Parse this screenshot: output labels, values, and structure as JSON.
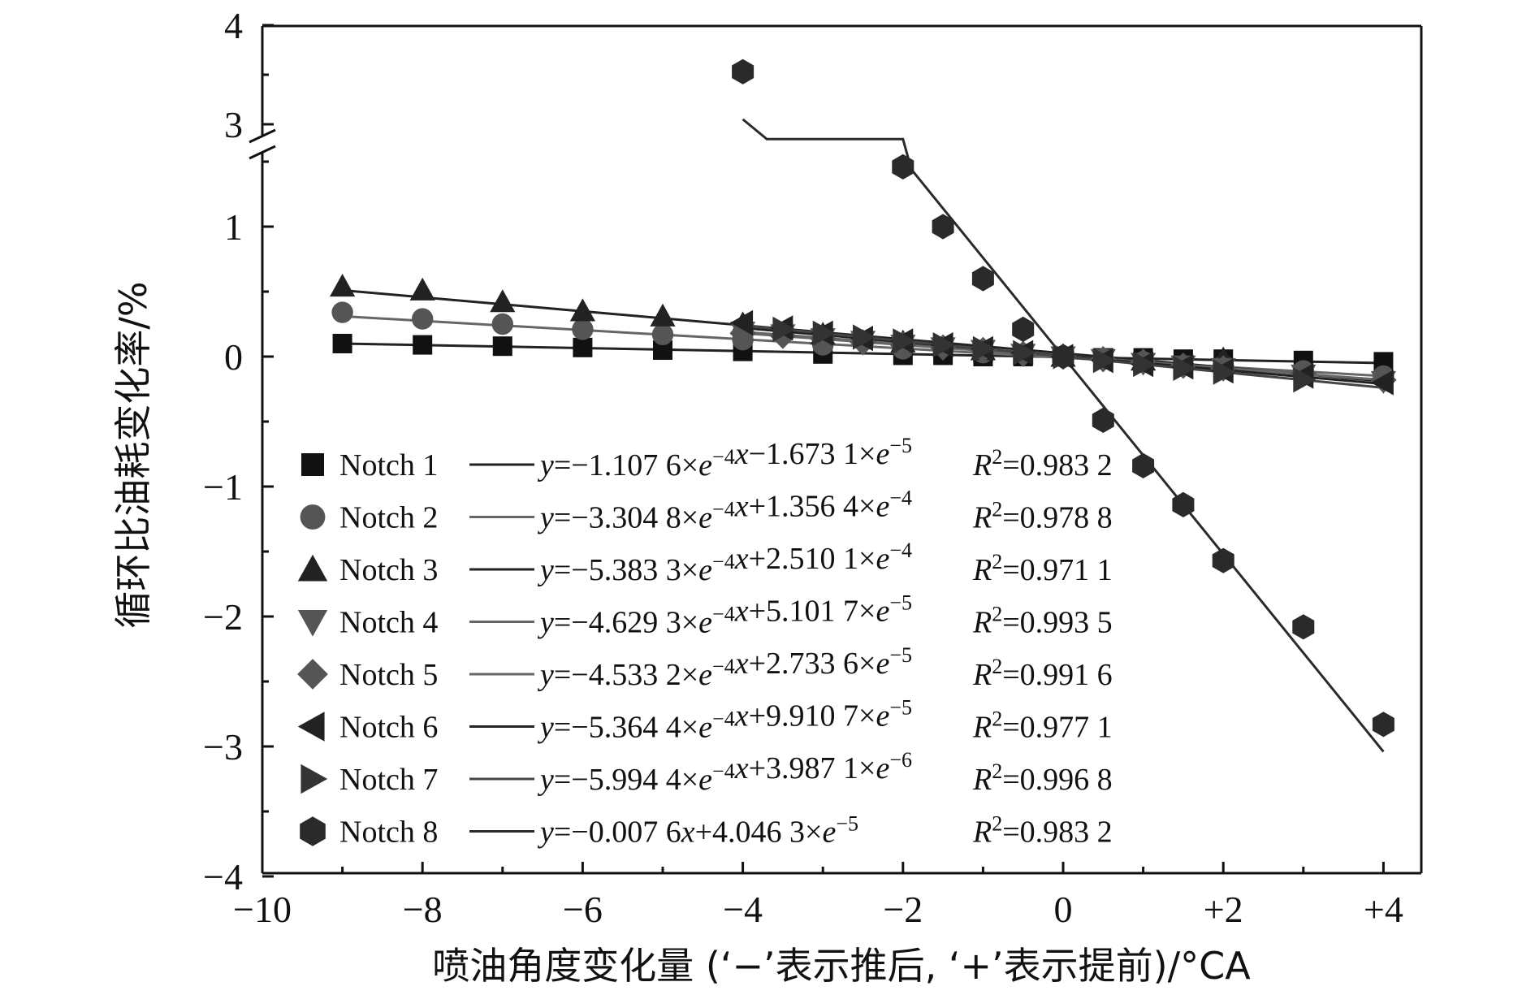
{
  "chart_data": {
    "type": "scatter",
    "xlabel": "喷油角度变化量 (‘−’表示推后, ‘+’表示提前)/°CA",
    "ylabel": "循环比油耗变化率/%",
    "xlim": [
      -10,
      4.5
    ],
    "ylim": [
      -4,
      4
    ],
    "y_axis_break": {
      "lower_top": 1.7,
      "upper_bottom": 2.8
    },
    "x_ticks": [
      {
        "value": -10,
        "label": "−10"
      },
      {
        "value": -8,
        "label": "−8"
      },
      {
        "value": -6,
        "label": "−6"
      },
      {
        "value": -4,
        "label": "−4"
      },
      {
        "value": -2,
        "label": "−2"
      },
      {
        "value": 0,
        "label": "0"
      },
      {
        "value": 2,
        "label": "+2"
      },
      {
        "value": 4,
        "label": "+4"
      }
    ],
    "y_ticks": [
      {
        "value": 4,
        "label": "4"
      },
      {
        "value": 3,
        "label": "3"
      },
      {
        "value": 1,
        "label": "1"
      },
      {
        "value": 0,
        "label": "0"
      },
      {
        "value": -1,
        "label": "−1"
      },
      {
        "value": -2,
        "label": "−2"
      },
      {
        "value": -3,
        "label": "−3"
      },
      {
        "value": -4,
        "label": "−4"
      }
    ],
    "legend_position": "bottom-left",
    "series": [
      {
        "name": "Notch 1",
        "marker": "square",
        "color": "#111111",
        "line_color": "#222222",
        "fit": {
          "prefix": "y",
          "body": "=−1.107 6×",
          "e1": "e",
          "exp1": "−4",
          "mid": "x−1.673 1×",
          "e2": "e",
          "exp2": "−5",
          "r_label": "R",
          "r2_sup": "2",
          "r2_value": "=0.983 2"
        },
        "fit_line": [
          [
            -9,
            0.1
          ],
          [
            4,
            -0.05
          ]
        ],
        "x": [
          -9,
          -8,
          -7,
          -6,
          -5,
          -4,
          -3,
          -2,
          -1.5,
          -1,
          -0.5,
          0,
          0.5,
          1,
          1.5,
          2,
          3,
          4
        ],
        "y": [
          0.1,
          0.09,
          0.08,
          0.07,
          0.05,
          0.04,
          0.02,
          0.01,
          0.01,
          0.0,
          0.0,
          0.0,
          -0.01,
          -0.01,
          -0.02,
          -0.02,
          -0.03,
          -0.04
        ]
      },
      {
        "name": "Notch 2",
        "marker": "circle",
        "color": "#555555",
        "line_color": "#666666",
        "fit": {
          "prefix": "y",
          "body": "=−3.304 8×",
          "e1": "e",
          "exp1": "−4",
          "mid": "x+1.356 4×",
          "e2": "e",
          "exp2": "−4",
          "r_label": "R",
          "r2_sup": "2",
          "r2_value": "=0.978 8"
        },
        "fit_line": [
          [
            -9,
            0.31
          ],
          [
            4,
            -0.15
          ]
        ],
        "x": [
          -9,
          -8,
          -7,
          -6,
          -5,
          -4,
          -3,
          -2,
          -1,
          0,
          1,
          2,
          3,
          4
        ],
        "y": [
          0.34,
          0.29,
          0.25,
          0.21,
          0.17,
          0.13,
          0.09,
          0.06,
          0.03,
          0.0,
          -0.04,
          -0.07,
          -0.11,
          -0.15
        ]
      },
      {
        "name": "Notch 3",
        "marker": "triangle-up",
        "color": "#222222",
        "line_color": "#222222",
        "fit": {
          "prefix": "y",
          "body": "=−5.383 3×",
          "e1": "e",
          "exp1": "−4",
          "mid": "x+2.510 1×",
          "e2": "e",
          "exp2": "−4",
          "r_label": "R",
          "r2_sup": "2",
          "r2_value": "=0.971 1"
        },
        "fit_line": [
          [
            -9,
            0.51
          ],
          [
            4,
            -0.19
          ]
        ],
        "x": [
          -9,
          -8,
          -7,
          -6,
          -5,
          -4,
          -3,
          -2,
          -1,
          0,
          1,
          2
        ],
        "y": [
          0.54,
          0.51,
          0.42,
          0.35,
          0.31,
          0.25,
          0.17,
          0.11,
          0.05,
          0.0,
          -0.03,
          -0.02
        ]
      },
      {
        "name": "Notch 4",
        "marker": "triangle-down",
        "color": "#555555",
        "line_color": "#666666",
        "fit": {
          "prefix": "y",
          "body": "=−4.629 3×",
          "e1": "e",
          "exp1": "−4",
          "mid": "x+5.101 7×",
          "e2": "e",
          "exp2": "−5",
          "r_label": "R",
          "r2_sup": "2",
          "r2_value": "=0.993 5"
        },
        "fit_line": [
          [
            -4,
            0.19
          ],
          [
            4,
            -0.18
          ]
        ],
        "x": [
          -4,
          -3.5,
          -3,
          -2.5,
          -2,
          -1.5,
          -1,
          -0.5,
          0,
          0.5,
          1,
          1.5,
          2,
          3,
          4
        ],
        "y": [
          0.19,
          0.17,
          0.14,
          0.12,
          0.09,
          0.07,
          0.05,
          0.02,
          0.0,
          -0.02,
          -0.05,
          -0.07,
          -0.09,
          -0.14,
          -0.19
        ]
      },
      {
        "name": "Notch 5",
        "marker": "diamond",
        "color": "#555555",
        "line_color": "#666666",
        "fit": {
          "prefix": "y",
          "body": "=−4.533 2×",
          "e1": "e",
          "exp1": "−4",
          "mid": "x+2.733 6×",
          "e2": "e",
          "exp2": "−5",
          "r_label": "R",
          "r2_sup": "2",
          "r2_value": "=0.991 6"
        },
        "fit_line": [
          [
            -4,
            0.18
          ],
          [
            4,
            -0.18
          ]
        ],
        "x": [
          -4,
          -3.5,
          -3,
          -2.5,
          -2,
          -1.5,
          -1,
          -0.5,
          0,
          0.5,
          1,
          1.5,
          2,
          3,
          4
        ],
        "y": [
          0.18,
          0.16,
          0.14,
          0.11,
          0.09,
          0.07,
          0.05,
          0.02,
          0.0,
          -0.02,
          -0.04,
          -0.07,
          -0.09,
          -0.13,
          -0.18
        ]
      },
      {
        "name": "Notch 6",
        "marker": "triangle-left",
        "color": "#222222",
        "line_color": "#222222",
        "fit": {
          "prefix": "y",
          "body": "=−5.364 4×",
          "e1": "e",
          "exp1": "−4",
          "mid": "x+9.910 7×",
          "e2": "e",
          "exp2": "−5",
          "r_label": "R",
          "r2_sup": "2",
          "r2_value": "=0.977 1"
        },
        "fit_line": [
          [
            -4,
            0.22
          ],
          [
            4,
            -0.21
          ]
        ],
        "x": [
          -4,
          -3.5,
          -3,
          -2.5,
          -2,
          -1.5,
          -1,
          -0.5,
          0,
          0.5,
          1,
          1.5,
          2,
          3,
          4
        ],
        "y": [
          0.26,
          0.22,
          0.18,
          0.14,
          0.12,
          0.09,
          0.06,
          0.03,
          0.0,
          -0.03,
          -0.06,
          -0.08,
          -0.11,
          -0.15,
          -0.2
        ]
      },
      {
        "name": "Notch 7",
        "marker": "triangle-right",
        "color": "#333333",
        "line_color": "#444444",
        "fit": {
          "prefix": "y",
          "body": "=−5.994 4×",
          "e1": "e",
          "exp1": "−4",
          "mid": "x+3.987 1×",
          "e2": "e",
          "exp2": "−6",
          "r_label": "R",
          "r2_sup": "2",
          "r2_value": "=0.996 8"
        },
        "fit_line": [
          [
            -4,
            0.24
          ],
          [
            4,
            -0.24
          ]
        ],
        "x": [
          -3.5,
          -3,
          -2.5,
          -2,
          -1.5,
          -1,
          -0.5,
          0,
          0.5,
          1,
          1.5,
          2,
          3
        ],
        "y": [
          0.21,
          0.18,
          0.15,
          0.12,
          0.09,
          0.06,
          0.03,
          0.0,
          -0.03,
          -0.06,
          -0.09,
          -0.12,
          -0.18
        ]
      },
      {
        "name": "Notch 8",
        "marker": "hexagon",
        "color": "#2a2a2a",
        "line_color": "#2a2a2a",
        "fit": {
          "prefix": "y",
          "body": "=−0.007 6",
          "e1": "",
          "exp1": "",
          "mid": "x+4.046 3×",
          "e2": "e",
          "exp2": "−5",
          "r_label": "R",
          "r2_sup": "2",
          "r2_value": "=0.983 2"
        },
        "fit_line": [
          [
            -2,
            1.52
          ],
          [
            4,
            -3.04
          ]
        ],
        "fit_line_upper": [
          [
            -4,
            3.05
          ],
          [
            -3.7,
            2.85
          ],
          [
            -2,
            2.85
          ],
          [
            -1.9,
            1.45
          ]
        ],
        "x": [
          -4,
          -2,
          -1.5,
          -1,
          -0.5,
          0,
          0.5,
          1,
          1.5,
          2,
          3,
          4
        ],
        "y": [
          3.53,
          1.46,
          1.0,
          0.6,
          0.21,
          0.0,
          -0.49,
          -0.84,
          -1.14,
          -1.57,
          -2.08,
          -2.83
        ]
      }
    ]
  }
}
